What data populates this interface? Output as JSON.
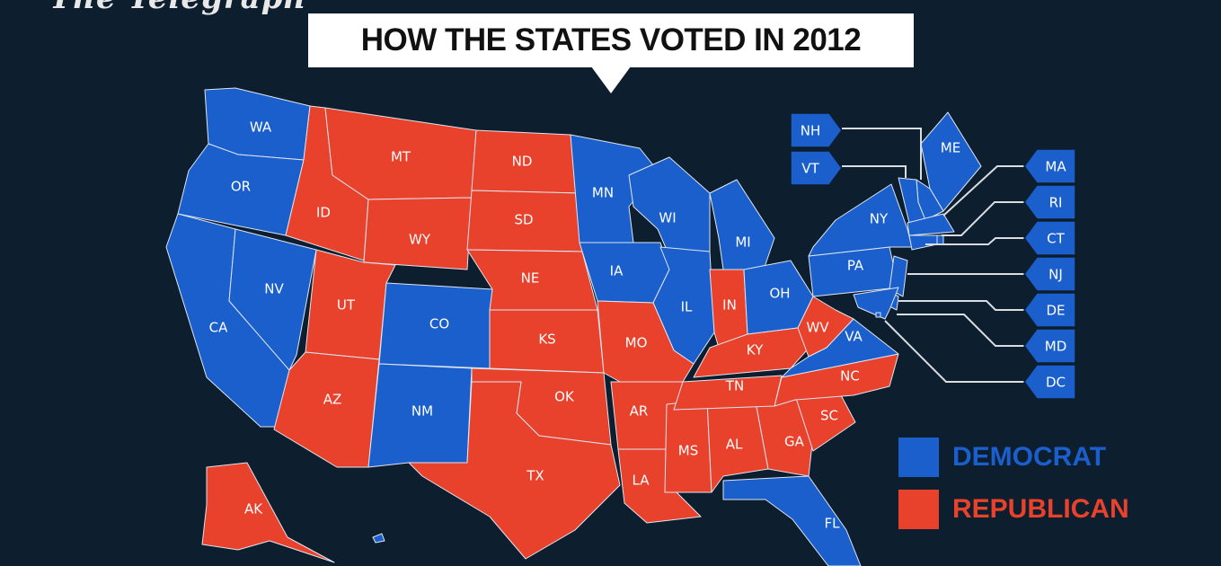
{
  "logo": "The Telegraph",
  "title": "HOW THE STATES VOTED IN 2012",
  "colors": {
    "background": "#0d1e2e",
    "democrat": "#1a5fcc",
    "republican": "#e8412c"
  },
  "legend": [
    {
      "label": "DEMOCRAT",
      "party": "D"
    },
    {
      "label": "REPUBLICAN",
      "party": "R"
    }
  ],
  "states": {
    "WA": "D",
    "OR": "D",
    "CA": "D",
    "NV": "D",
    "ID": "R",
    "MT": "R",
    "WY": "R",
    "UT": "R",
    "AZ": "R",
    "CO": "D",
    "NM": "D",
    "ND": "R",
    "SD": "R",
    "NE": "R",
    "KS": "R",
    "OK": "R",
    "TX": "R",
    "MN": "D",
    "IA": "D",
    "WI": "D",
    "MI": "D",
    "IL": "D",
    "IN": "R",
    "OH": "D",
    "MO": "R",
    "AR": "R",
    "LA": "R",
    "MS": "R",
    "AL": "R",
    "GA": "R",
    "FL": "D",
    "SC": "R",
    "NC": "R",
    "TN": "R",
    "KY": "R",
    "WV": "R",
    "VA": "D",
    "PA": "D",
    "NY": "D",
    "ME": "D",
    "NH": "D",
    "VT": "D",
    "MA": "D",
    "RI": "D",
    "CT": "D",
    "NJ": "D",
    "DE": "D",
    "MD": "D",
    "DC": "D",
    "AK": "R",
    "HI": "D"
  },
  "callouts": [
    "NH",
    "VT",
    "MA",
    "RI",
    "CT",
    "NJ",
    "DE",
    "MD",
    "DC"
  ]
}
